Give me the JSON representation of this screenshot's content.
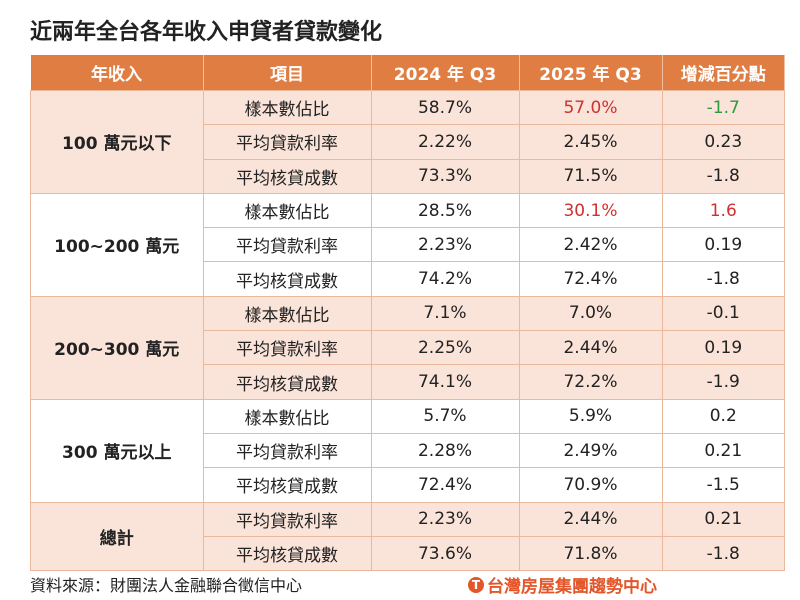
{
  "title": "近兩年全台各年收入申貸者貸款變化",
  "headers": [
    "年收入",
    "項目",
    "2024 年 Q3",
    "2025 年 Q3",
    "增減百分點"
  ],
  "colors": {
    "header": "#e07d42",
    "shaded": "#fae3d8",
    "red": "#d0302f",
    "green": "#2c9a3d"
  },
  "groups": [
    {
      "label": "100 萬元以下",
      "rows": [
        [
          "樣本數佔比",
          "58.7%",
          "57.0%",
          "-1.7"
        ],
        [
          "平均貸款利率",
          "2.22%",
          "2.45%",
          "0.23"
        ],
        [
          "平均核貸成數",
          "73.3%",
          "71.5%",
          "-1.8"
        ]
      ]
    },
    {
      "label": "100~200 萬元",
      "rows": [
        [
          "樣本數佔比",
          "28.5%",
          "30.1%",
          "1.6"
        ],
        [
          "平均貸款利率",
          "2.23%",
          "2.42%",
          "0.19"
        ],
        [
          "平均核貸成數",
          "74.2%",
          "72.4%",
          "-1.8"
        ]
      ]
    },
    {
      "label": "200~300 萬元",
      "rows": [
        [
          "樣本數佔比",
          "7.1%",
          "7.0%",
          "-0.1"
        ],
        [
          "平均貸款利率",
          "2.25%",
          "2.44%",
          "0.19"
        ],
        [
          "平均核貸成數",
          "74.1%",
          "72.2%",
          "-1.9"
        ]
      ]
    },
    {
      "label": "300 萬元以上",
      "rows": [
        [
          "樣本數佔比",
          "5.7%",
          "5.9%",
          "0.2"
        ],
        [
          "平均貸款利率",
          "2.28%",
          "2.49%",
          "0.21"
        ],
        [
          "平均核貸成數",
          "72.4%",
          "70.9%",
          "-1.5"
        ]
      ]
    },
    {
      "label": "總計",
      "rows": [
        [
          "平均貸款利率",
          "2.23%",
          "2.44%",
          "0.21"
        ],
        [
          "平均核貸成數",
          "73.6%",
          "71.8%",
          "-1.8"
        ]
      ]
    }
  ],
  "highlights": {
    "0.0.2": "red",
    "0.0.3": "green",
    "1.0.2": "red",
    "1.0.3": "red"
  },
  "source": "資料來源：財團法人金融聯合徵信中心",
  "logo": "台灣房屋集團趨勢中心"
}
